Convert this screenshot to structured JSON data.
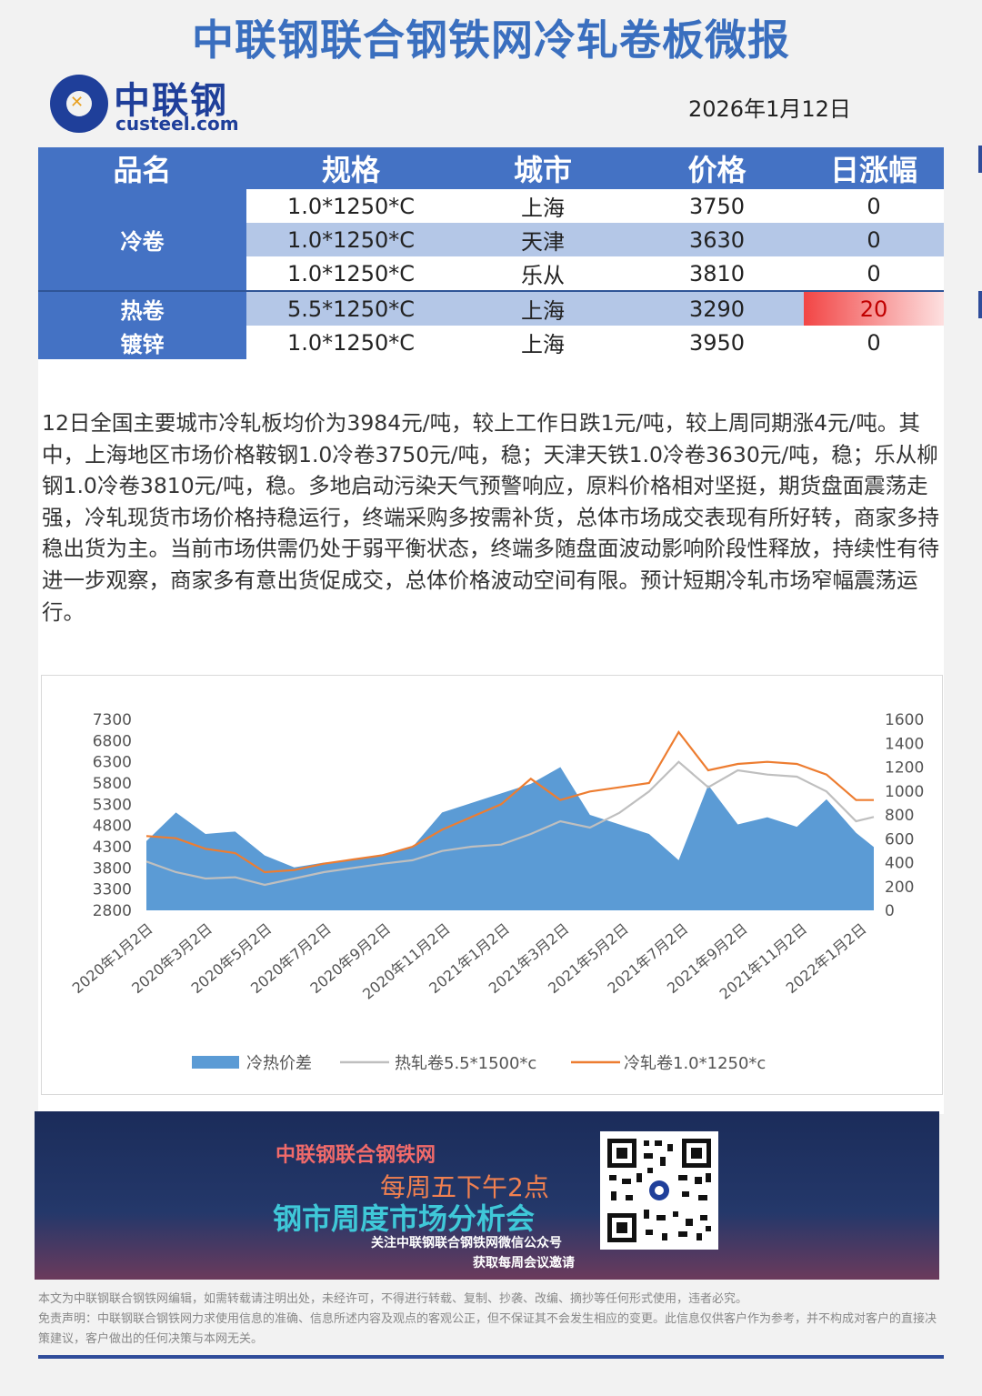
{
  "header": {
    "title": "中联钢联合钢铁网冷轧卷板微报",
    "logo_cn": "中联钢",
    "logo_en": "custeel.com",
    "date": "2026年1月12日"
  },
  "table": {
    "headers": [
      "品名",
      "规格",
      "城市",
      "价格",
      "日涨幅"
    ],
    "categories": {
      "cold": "冷卷",
      "hot": "热卷",
      "galv": "镀锌"
    },
    "rows": [
      {
        "spec": "1.0*1250*C",
        "city": "上海",
        "price": "3750",
        "change": "0"
      },
      {
        "spec": "1.0*1250*C",
        "city": "天津",
        "price": "3630",
        "change": "0"
      },
      {
        "spec": "1.0*1250*C",
        "city": "乐从",
        "price": "3810",
        "change": "0"
      },
      {
        "spec": "5.5*1250*C",
        "city": "上海",
        "price": "3290",
        "change": "20"
      },
      {
        "spec": "1.0*1250*C",
        "city": "上海",
        "price": "3950",
        "change": "0"
      }
    ]
  },
  "summary": "12日全国主要城市冷轧板均价为3984元/吨，较上工作日跌1元/吨，较上周同期涨4元/吨。其中，上海地区市场价格鞍钢1.0冷卷3750元/吨，稳；天津天铁1.0冷卷3630元/吨，稳；乐从柳钢1.0冷卷3810元/吨，稳。多地启动污染天气预警响应，原料价格相对坚挺，期货盘面震荡走强，冷轧现货市场价格持稳运行，终端采购多按需补货，总体市场成交表现有所好转，商家多持稳出货为主。当前市场供需仍处于弱平衡状态，终端多随盘面波动影响阶段性释放，持续性有待进一步观察，商家多有意出货促成交，总体价格波动空间有限。预计短期冷轧市场窄幅震荡运行。",
  "chart_data": {
    "type": "line",
    "title": "",
    "x_ticks": [
      "2020年1月2日",
      "2020年3月2日",
      "2020年5月2日",
      "2020年7月2日",
      "2020年9月2日",
      "2020年11月2日",
      "2021年1月2日",
      "2021年3月2日",
      "2021年5月2日",
      "2021年7月2日",
      "2021年9月2日",
      "2021年11月2日",
      "2022年1月2日"
    ],
    "y_left_ticks": [
      "7300",
      "6800",
      "6300",
      "5800",
      "5300",
      "4800",
      "4300",
      "3800",
      "3300",
      "2800"
    ],
    "y_right_ticks": [
      "1600",
      "1400",
      "1200",
      "1000",
      "800",
      "600",
      "400",
      "200",
      "0"
    ],
    "ylim_left": [
      2800,
      7300
    ],
    "ylim_right": [
      0,
      1600
    ],
    "legend_position": "bottom",
    "colors": {
      "spread": "#5b9bd5",
      "hot": "#bfbfbf",
      "cold": "#ed7d31"
    },
    "series": [
      {
        "name": "冷热价差",
        "type": "area",
        "axis": "right",
        "x": [
          0,
          0.5,
          1,
          1.5,
          2,
          2.5,
          3,
          3.5,
          4,
          4.5,
          5,
          5.5,
          6,
          6.5,
          7,
          7.5,
          8,
          8.5,
          9,
          9.5,
          10,
          10.5,
          11,
          11.5,
          12,
          12.3
        ],
        "values": [
          580,
          820,
          640,
          660,
          460,
          360,
          400,
          420,
          470,
          530,
          820,
          900,
          980,
          1060,
          1200,
          800,
          720,
          640,
          420,
          1050,
          720,
          780,
          700,
          930,
          650,
          530
        ]
      },
      {
        "name": "热轧卷5.5*1500*c",
        "type": "line",
        "axis": "left",
        "x": [
          0,
          0.5,
          1,
          1.5,
          2,
          2.5,
          3,
          3.5,
          4,
          4.5,
          5,
          5.5,
          6,
          6.5,
          7,
          7.5,
          8,
          8.5,
          9,
          9.5,
          10,
          10.5,
          11,
          11.5,
          12,
          12.3
        ],
        "values": [
          3950,
          3700,
          3550,
          3580,
          3400,
          3550,
          3700,
          3800,
          3900,
          3980,
          4200,
          4300,
          4350,
          4600,
          4900,
          4750,
          5100,
          5600,
          6300,
          5700,
          6100,
          6000,
          5950,
          5600,
          4900,
          5000
        ]
      },
      {
        "name": "冷轧卷1.0*1250*c",
        "type": "line",
        "axis": "left",
        "x": [
          0,
          0.5,
          1,
          1.5,
          2,
          2.5,
          3,
          3.5,
          4,
          4.5,
          5,
          5.5,
          6,
          6.5,
          7,
          7.5,
          8,
          8.5,
          9,
          9.5,
          10,
          10.5,
          11,
          11.5,
          12,
          12.3
        ],
        "values": [
          4550,
          4500,
          4250,
          4150,
          3700,
          3750,
          3900,
          4000,
          4100,
          4300,
          4700,
          5000,
          5300,
          5900,
          5400,
          5600,
          5700,
          5800,
          7000,
          6100,
          6250,
          6300,
          6250,
          6000,
          5400,
          5400
        ]
      }
    ]
  },
  "banner": {
    "line1": "中联钢联合钢铁网",
    "line2": "每周五下午2点",
    "line3": "钢市周度市场分析会",
    "line4": "关注中联钢联合钢铁网微信公众号",
    "line5": "获取每周会议邀请"
  },
  "footer": {
    "copyright": "本文为中联钢联合钢铁网编辑，如需转载请注明出处，未经许可，不得进行转载、复制、抄袭、改编、摘抄等任何形式使用，违者必究。",
    "disclaimer": "免责声明：中联钢联合钢铁网力求使用信息的准确、信息所述内容及观点的客观公正，但不保证其不会发生相应的变更。此信息仅供客户作为参考，并不构成对客户的直接决策建议，客户做出的任何决策与本网无关。"
  }
}
